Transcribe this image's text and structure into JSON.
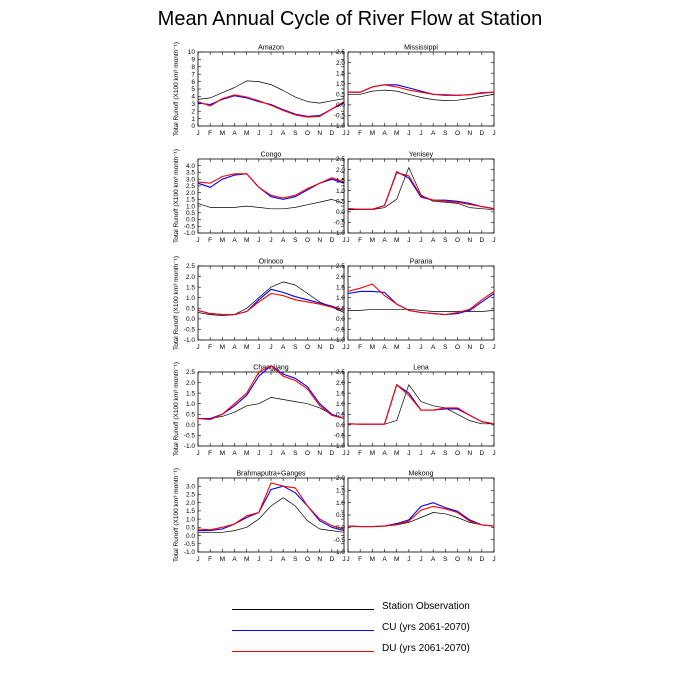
{
  "title": "Mean Annual Cycle of River Flow at Station",
  "ylabel": "Total Runoff (X100 km³ month⁻¹)",
  "months": [
    "J",
    "F",
    "M",
    "A",
    "M",
    "J",
    "J",
    "A",
    "S",
    "O",
    "N",
    "D",
    "J"
  ],
  "legend": [
    {
      "label": "Station Observation",
      "color": "#000000"
    },
    {
      "label": "CU (yrs 2061-2070)",
      "color": "#0000ff"
    },
    {
      "label": "DU (yrs 2061-2070)",
      "color": "#ff0000"
    }
  ],
  "chart_data": [
    {
      "type": "line",
      "title": "Amazon",
      "ylim": [
        0,
        10
      ],
      "yticks": [
        "0",
        "1",
        "2",
        "3",
        "4",
        "5",
        "6",
        "7",
        "8",
        "9",
        "10"
      ],
      "series": [
        {
          "name": "Station Observation",
          "values": [
            3.6,
            3.8,
            4.5,
            5.2,
            6.1,
            6.0,
            5.6,
            4.8,
            3.9,
            3.3,
            3.1,
            3.4,
            3.7
          ]
        },
        {
          "name": "CU (yrs 2061-2070)",
          "values": [
            3.1,
            2.9,
            3.6,
            4.1,
            3.8,
            3.3,
            2.9,
            2.2,
            1.6,
            1.3,
            1.4,
            2.3,
            3.1
          ]
        },
        {
          "name": "DU (yrs 2061-2070)",
          "values": [
            3.3,
            2.7,
            3.7,
            4.2,
            3.9,
            3.4,
            2.8,
            2.1,
            1.5,
            1.2,
            1.3,
            2.3,
            3.3
          ]
        }
      ]
    },
    {
      "type": "line",
      "title": "Mississippi",
      "ylim": [
        -1.0,
        2.5
      ],
      "yticks": [
        "-1.0",
        "-0.5",
        "0.0",
        "0.5",
        "1.0",
        "1.5",
        "2.0",
        "2.5"
      ],
      "series": [
        {
          "name": "Station Observation",
          "values": [
            0.5,
            0.5,
            0.65,
            0.7,
            0.65,
            0.5,
            0.35,
            0.25,
            0.2,
            0.22,
            0.3,
            0.4,
            0.5
          ]
        },
        {
          "name": "CU (yrs 2061-2070)",
          "values": [
            0.6,
            0.6,
            0.85,
            0.95,
            0.95,
            0.8,
            0.65,
            0.5,
            0.45,
            0.45,
            0.48,
            0.55,
            0.6
          ]
        },
        {
          "name": "DU (yrs 2061-2070)",
          "values": [
            0.6,
            0.6,
            0.85,
            0.95,
            0.85,
            0.7,
            0.6,
            0.5,
            0.48,
            0.45,
            0.48,
            0.58,
            0.6
          ]
        }
      ]
    },
    {
      "type": "line",
      "title": "Congo",
      "ylim": [
        -1.0,
        4.5
      ],
      "yticks": [
        "-1.0",
        "-0.5",
        "0.0",
        "0.5",
        "1.0",
        "1.5",
        "2.0",
        "2.5",
        "3.0",
        "3.5",
        "4.0"
      ],
      "series": [
        {
          "name": "Station Observation",
          "values": [
            1.2,
            0.9,
            0.9,
            0.9,
            1.0,
            0.9,
            0.8,
            0.8,
            0.9,
            1.1,
            1.3,
            1.5,
            1.2
          ]
        },
        {
          "name": "CU (yrs 2061-2070)",
          "values": [
            2.7,
            2.4,
            3.0,
            3.3,
            3.4,
            2.4,
            1.7,
            1.5,
            1.7,
            2.2,
            2.7,
            3.0,
            2.7
          ]
        },
        {
          "name": "DU (yrs 2061-2070)",
          "values": [
            2.8,
            2.7,
            3.2,
            3.4,
            3.4,
            2.4,
            1.8,
            1.6,
            1.8,
            2.3,
            2.7,
            3.1,
            2.8
          ]
        }
      ]
    },
    {
      "type": "line",
      "title": "Yenisey",
      "ylim": [
        -1.0,
        2.5
      ],
      "yticks": [
        "-1.0",
        "-0.5",
        "0.0",
        "0.5",
        "1.0",
        "1.5",
        "2.0",
        "2.5"
      ],
      "series": [
        {
          "name": "Station Observation",
          "values": [
            0.1,
            0.1,
            0.1,
            0.2,
            0.6,
            2.1,
            0.8,
            0.5,
            0.45,
            0.4,
            0.2,
            0.15,
            0.1
          ]
        },
        {
          "name": "CU (yrs 2061-2070)",
          "values": [
            0.15,
            0.12,
            0.12,
            0.3,
            1.9,
            1.6,
            0.7,
            0.55,
            0.55,
            0.5,
            0.4,
            0.25,
            0.15
          ]
        },
        {
          "name": "DU (yrs 2061-2070)",
          "values": [
            0.15,
            0.12,
            0.12,
            0.3,
            1.85,
            1.7,
            0.75,
            0.55,
            0.5,
            0.45,
            0.35,
            0.25,
            0.15
          ]
        }
      ]
    },
    {
      "type": "line",
      "title": "Orinoco",
      "ylim": [
        -1.0,
        2.5
      ],
      "yticks": [
        "-1.0",
        "-0.5",
        "0.0",
        "0.5",
        "1.0",
        "1.5",
        "2.0",
        "2.5"
      ],
      "series": [
        {
          "name": "Station Observation",
          "values": [
            0.3,
            0.2,
            0.15,
            0.2,
            0.5,
            1.0,
            1.5,
            1.75,
            1.6,
            1.2,
            0.8,
            0.55,
            0.3
          ]
        },
        {
          "name": "CU (yrs 2061-2070)",
          "values": [
            0.4,
            0.25,
            0.2,
            0.2,
            0.35,
            0.9,
            1.4,
            1.25,
            1.05,
            0.9,
            0.75,
            0.6,
            0.4
          ]
        },
        {
          "name": "DU (yrs 2061-2070)",
          "values": [
            0.4,
            0.25,
            0.2,
            0.2,
            0.35,
            0.8,
            1.2,
            1.1,
            0.9,
            0.8,
            0.7,
            0.55,
            0.4
          ]
        }
      ]
    },
    {
      "type": "line",
      "title": "Parana",
      "ylim": [
        -1.0,
        2.5
      ],
      "yticks": [
        "-1.0",
        "-0.5",
        "0.0",
        "0.5",
        "1.0",
        "1.5",
        "2.0",
        "2.5"
      ],
      "series": [
        {
          "name": "Station Observation",
          "values": [
            0.4,
            0.4,
            0.45,
            0.45,
            0.45,
            0.45,
            0.4,
            0.35,
            0.35,
            0.35,
            0.35,
            0.35,
            0.4
          ]
        },
        {
          "name": "CU (yrs 2061-2070)",
          "values": [
            1.2,
            1.3,
            1.3,
            1.25,
            0.7,
            0.4,
            0.3,
            0.25,
            0.2,
            0.25,
            0.4,
            0.8,
            1.2
          ]
        },
        {
          "name": "DU (yrs 2061-2070)",
          "values": [
            1.3,
            1.45,
            1.65,
            1.1,
            0.7,
            0.4,
            0.3,
            0.25,
            0.2,
            0.3,
            0.45,
            0.9,
            1.3
          ]
        }
      ]
    },
    {
      "type": "line",
      "title": "Changjiang",
      "ylim": [
        -1.0,
        2.5
      ],
      "yticks": [
        "-1.0",
        "-0.5",
        "0.0",
        "0.5",
        "1.0",
        "1.5",
        "2.0",
        "2.5"
      ],
      "series": [
        {
          "name": "Station Observation",
          "values": [
            0.3,
            0.3,
            0.4,
            0.6,
            0.9,
            1.0,
            1.3,
            1.2,
            1.1,
            1.0,
            0.8,
            0.5,
            0.3
          ]
        },
        {
          "name": "CU (yrs 2061-2070)",
          "values": [
            0.3,
            0.3,
            0.5,
            0.9,
            1.4,
            2.3,
            2.8,
            2.4,
            2.2,
            1.8,
            1.0,
            0.5,
            0.3
          ]
        },
        {
          "name": "DU (yrs 2061-2070)",
          "values": [
            0.3,
            0.25,
            0.5,
            1.0,
            1.5,
            2.5,
            2.8,
            2.3,
            2.1,
            1.7,
            0.9,
            0.45,
            0.3
          ]
        }
      ]
    },
    {
      "type": "line",
      "title": "Lena",
      "ylim": [
        -1.0,
        2.5
      ],
      "yticks": [
        "-1.0",
        "-0.5",
        "0.0",
        "0.5",
        "1.0",
        "1.5",
        "2.0",
        "2.5"
      ],
      "series": [
        {
          "name": "Station Observation",
          "values": [
            0.05,
            0.03,
            0.03,
            0.03,
            0.2,
            1.9,
            1.1,
            0.9,
            0.8,
            0.5,
            0.2,
            0.05,
            0.05
          ]
        },
        {
          "name": "CU (yrs 2061-2070)",
          "values": [
            0.05,
            0.03,
            0.03,
            0.03,
            1.9,
            1.5,
            0.7,
            0.7,
            0.75,
            0.75,
            0.45,
            0.15,
            0.05
          ]
        },
        {
          "name": "DU (yrs 2061-2070)",
          "values": [
            0.05,
            0.03,
            0.03,
            0.03,
            1.9,
            1.4,
            0.7,
            0.7,
            0.8,
            0.8,
            0.45,
            0.15,
            0.05
          ]
        }
      ]
    },
    {
      "type": "line",
      "title": "Brahmaputra+Ganges",
      "ylim": [
        -1.0,
        3.5
      ],
      "yticks": [
        "-1.0",
        "-0.5",
        "0.0",
        "0.5",
        "1.0",
        "1.5",
        "2.0",
        "2.5",
        "3.0"
      ],
      "series": [
        {
          "name": "Station Observation",
          "values": [
            0.2,
            0.2,
            0.2,
            0.3,
            0.5,
            1.0,
            1.8,
            2.3,
            1.8,
            0.9,
            0.4,
            0.3,
            0.2
          ]
        },
        {
          "name": "CU (yrs 2061-2070)",
          "values": [
            0.3,
            0.3,
            0.4,
            0.7,
            1.1,
            1.4,
            2.8,
            3.0,
            2.6,
            1.8,
            0.9,
            0.5,
            0.3
          ]
        },
        {
          "name": "DU (yrs 2061-2070)",
          "values": [
            0.4,
            0.35,
            0.5,
            0.7,
            1.2,
            1.4,
            3.2,
            3.0,
            2.9,
            1.8,
            1.0,
            0.6,
            0.4
          ]
        }
      ]
    },
    {
      "type": "line",
      "title": "Mekong",
      "ylim": [
        -1.0,
        2.0
      ],
      "yticks": [
        "-1.0",
        "-0.5",
        "0.0",
        "0.5",
        "1.0",
        "1.5",
        "2.0"
      ],
      "series": [
        {
          "name": "Station Observation",
          "values": [
            0.05,
            0.03,
            0.03,
            0.05,
            0.1,
            0.2,
            0.4,
            0.6,
            0.55,
            0.4,
            0.2,
            0.1,
            0.05
          ]
        },
        {
          "name": "CU (yrs 2061-2070)",
          "values": [
            0.05,
            0.03,
            0.03,
            0.05,
            0.15,
            0.3,
            0.85,
            1.0,
            0.8,
            0.65,
            0.3,
            0.1,
            0.05
          ]
        },
        {
          "name": "DU (yrs 2061-2070)",
          "values": [
            0.05,
            0.03,
            0.03,
            0.05,
            0.12,
            0.25,
            0.7,
            0.85,
            0.75,
            0.6,
            0.25,
            0.1,
            0.05
          ]
        }
      ]
    }
  ]
}
